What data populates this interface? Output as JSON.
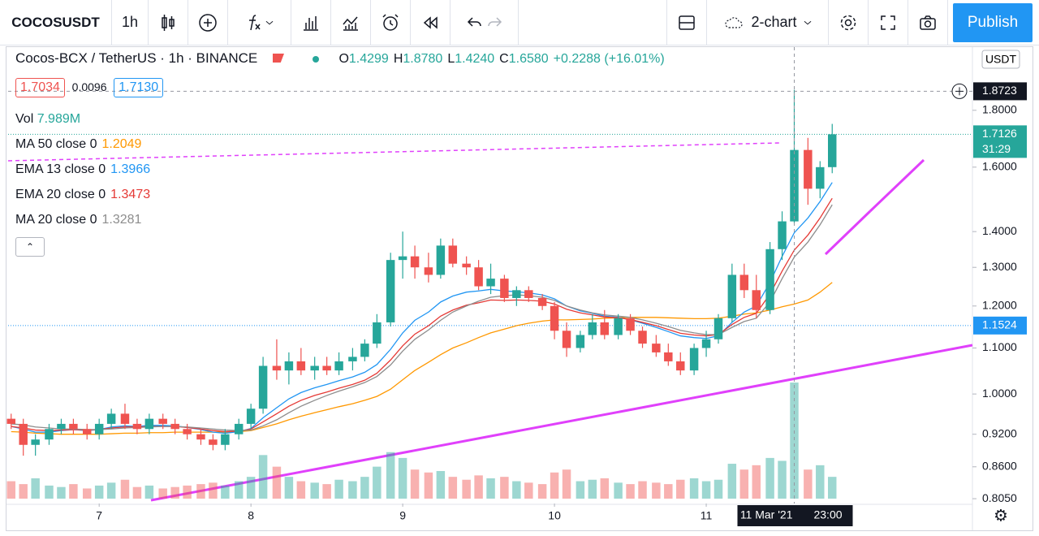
{
  "toolbar": {
    "symbol": "COCOSUSDT",
    "interval": "1h",
    "layout": "2-chart",
    "publish": "Publish"
  },
  "legend": {
    "title": "Cocos-BCX / TetherUS · 1h · BINANCE",
    "ohlc": [
      {
        "key": "O",
        "value": "1.4299"
      },
      {
        "key": "H",
        "value": "1.8780"
      },
      {
        "key": "L",
        "value": "1.4240"
      },
      {
        "key": "C",
        "value": "1.6580"
      }
    ],
    "change": "+0.2288 (+16.01%)",
    "bid": "1.7034",
    "spread": "0.0096",
    "ask": "1.7130",
    "volume_name": "Vol",
    "volume_value": "7.989M"
  },
  "chart_data": {
    "type": "candlestick",
    "currency": "USDT",
    "log_scale": true,
    "up_color": "#26a69a",
    "down_color": "#ef5350",
    "xlim": [
      6.4,
      12.754
    ],
    "xticks": [
      7,
      8,
      9,
      10,
      11
    ],
    "ylim": [
      0.797,
      2.038
    ],
    "yticks": [
      {
        "value": 0.805,
        "label": "0.8050"
      },
      {
        "value": 0.86,
        "label": "0.8600"
      },
      {
        "value": 0.92,
        "label": "0.9200"
      },
      {
        "value": 1.0,
        "label": "1.0000"
      },
      {
        "value": 1.1,
        "label": "1.1000"
      },
      {
        "value": 1.2,
        "label": "1.2000"
      },
      {
        "value": 1.3,
        "label": "1.3000"
      },
      {
        "value": 1.4,
        "label": "1.4000"
      },
      {
        "value": 1.6,
        "label": "1.6000"
      },
      {
        "value": 1.8,
        "label": "1.8000"
      }
    ],
    "vol_ylim": [
      0,
      9500000
    ],
    "x": [
      6.42,
      6.5,
      6.58,
      6.67,
      6.75,
      6.83,
      6.92,
      7.0,
      7.08,
      7.17,
      7.25,
      7.33,
      7.42,
      7.5,
      7.58,
      7.67,
      7.75,
      7.83,
      7.92,
      8.0,
      8.08,
      8.17,
      8.25,
      8.33,
      8.42,
      8.5,
      8.58,
      8.67,
      8.75,
      8.83,
      8.92,
      9.0,
      9.08,
      9.17,
      9.25,
      9.33,
      9.42,
      9.5,
      9.58,
      9.67,
      9.75,
      9.83,
      9.92,
      10.0,
      10.08,
      10.17,
      10.25,
      10.33,
      10.42,
      10.5,
      10.58,
      10.67,
      10.75,
      10.83,
      10.92,
      11.0,
      11.08,
      11.17,
      11.25,
      11.33,
      11.42,
      11.5,
      11.58,
      11.67,
      11.75,
      11.83
    ],
    "open": [
      0.95,
      0.94,
      0.9,
      0.91,
      0.93,
      0.94,
      0.93,
      0.92,
      0.94,
      0.96,
      0.94,
      0.93,
      0.95,
      0.94,
      0.93,
      0.92,
      0.91,
      0.9,
      0.92,
      0.94,
      0.97,
      1.06,
      1.05,
      1.07,
      1.05,
      1.06,
      1.05,
      1.07,
      1.08,
      1.11,
      1.16,
      1.32,
      1.33,
      1.3,
      1.28,
      1.36,
      1.31,
      1.3,
      1.25,
      1.27,
      1.22,
      1.24,
      1.22,
      1.2,
      1.14,
      1.1,
      1.13,
      1.16,
      1.13,
      1.17,
      1.14,
      1.11,
      1.09,
      1.07,
      1.05,
      1.1,
      1.12,
      1.17,
      1.28,
      1.24,
      1.19,
      1.35,
      1.4299,
      1.658,
      1.53,
      1.6
    ],
    "high": [
      0.96,
      0.95,
      0.92,
      0.94,
      0.95,
      0.95,
      0.94,
      0.95,
      0.97,
      0.98,
      0.95,
      0.96,
      0.96,
      0.95,
      0.94,
      0.93,
      0.92,
      0.93,
      0.95,
      0.98,
      1.08,
      1.12,
      1.09,
      1.1,
      1.08,
      1.08,
      1.09,
      1.1,
      1.12,
      1.18,
      1.34,
      1.4,
      1.36,
      1.34,
      1.38,
      1.38,
      1.33,
      1.32,
      1.31,
      1.28,
      1.25,
      1.25,
      1.23,
      1.21,
      1.16,
      1.14,
      1.18,
      1.19,
      1.18,
      1.18,
      1.15,
      1.13,
      1.11,
      1.09,
      1.11,
      1.14,
      1.18,
      1.31,
      1.31,
      1.28,
      1.37,
      1.46,
      1.878,
      1.7,
      1.62,
      1.75
    ],
    "low": [
      0.93,
      0.88,
      0.88,
      0.9,
      0.92,
      0.92,
      0.91,
      0.91,
      0.93,
      0.93,
      0.92,
      0.92,
      0.93,
      0.92,
      0.91,
      0.9,
      0.89,
      0.89,
      0.91,
      0.93,
      0.96,
      1.03,
      1.02,
      1.04,
      1.03,
      1.04,
      1.04,
      1.05,
      1.07,
      1.1,
      1.15,
      1.27,
      1.27,
      1.26,
      1.27,
      1.3,
      1.28,
      1.24,
      1.23,
      1.21,
      1.2,
      1.21,
      1.19,
      1.12,
      1.08,
      1.09,
      1.12,
      1.12,
      1.12,
      1.13,
      1.1,
      1.08,
      1.06,
      1.04,
      1.04,
      1.08,
      1.11,
      1.16,
      1.22,
      1.17,
      1.18,
      1.32,
      1.424,
      1.48,
      1.5,
      1.58
    ],
    "close": [
      0.94,
      0.9,
      0.91,
      0.93,
      0.94,
      0.93,
      0.92,
      0.94,
      0.96,
      0.94,
      0.93,
      0.95,
      0.94,
      0.93,
      0.92,
      0.91,
      0.9,
      0.92,
      0.94,
      0.97,
      1.06,
      1.05,
      1.07,
      1.05,
      1.06,
      1.05,
      1.07,
      1.08,
      1.11,
      1.16,
      1.32,
      1.33,
      1.3,
      1.28,
      1.36,
      1.31,
      1.3,
      1.25,
      1.27,
      1.22,
      1.24,
      1.22,
      1.2,
      1.14,
      1.1,
      1.13,
      1.16,
      1.13,
      1.17,
      1.14,
      1.11,
      1.09,
      1.07,
      1.05,
      1.1,
      1.12,
      1.17,
      1.28,
      1.24,
      1.19,
      1.35,
      1.43,
      1.658,
      1.53,
      1.6,
      1.7126
    ],
    "volume": [
      1200000,
      1000000,
      1400000,
      900000,
      800000,
      1000000,
      700000,
      900000,
      1100000,
      1300000,
      800000,
      900000,
      700000,
      800000,
      900000,
      1000000,
      1100000,
      900000,
      1200000,
      1500000,
      3000000,
      2200000,
      1500000,
      1200000,
      1100000,
      1000000,
      1300000,
      1200000,
      1500000,
      2200000,
      3200000,
      2800000,
      2000000,
      1800000,
      1900000,
      1500000,
      1300000,
      1600000,
      1400000,
      1500000,
      1200000,
      1100000,
      1000000,
      1800000,
      2000000,
      1200000,
      1300000,
      1400000,
      1100000,
      1000000,
      1200000,
      1100000,
      1000000,
      1300000,
      1400000,
      1200000,
      1300000,
      2400000,
      2000000,
      2300000,
      2800000,
      2600000,
      7989000,
      2000000,
      2300000,
      1500000
    ],
    "series": [
      {
        "name": "MA 50 close 0",
        "color": "#ff9800",
        "values": [
          0.925,
          0.924,
          0.922,
          0.921,
          0.92,
          0.92,
          0.92,
          0.92,
          0.921,
          0.922,
          0.922,
          0.923,
          0.923,
          0.924,
          0.924,
          0.924,
          0.924,
          0.924,
          0.925,
          0.927,
          0.933,
          0.94,
          0.948,
          0.955,
          0.962,
          0.968,
          0.974,
          0.98,
          0.987,
          0.995,
          1.01,
          1.03,
          1.05,
          1.068,
          1.085,
          1.1,
          1.112,
          1.124,
          1.135,
          1.144,
          1.152,
          1.158,
          1.163,
          1.166,
          1.166,
          1.167,
          1.168,
          1.17,
          1.171,
          1.172,
          1.172,
          1.172,
          1.171,
          1.17,
          1.169,
          1.169,
          1.17,
          1.175,
          1.18,
          1.183,
          1.19,
          1.198,
          1.2049,
          1.215,
          1.235,
          1.26
        ]
      },
      {
        "name": "EMA 13 close 0",
        "color": "#2196f3",
        "values": [
          0.935,
          0.93,
          0.924,
          0.924,
          0.927,
          0.929,
          0.927,
          0.929,
          0.934,
          0.936,
          0.935,
          0.937,
          0.937,
          0.936,
          0.933,
          0.929,
          0.924,
          0.922,
          0.925,
          0.931,
          0.952,
          0.972,
          0.99,
          1.003,
          1.013,
          1.02,
          1.028,
          1.036,
          1.046,
          1.063,
          1.097,
          1.135,
          1.165,
          1.185,
          1.21,
          1.225,
          1.235,
          1.238,
          1.242,
          1.238,
          1.236,
          1.233,
          1.228,
          1.218,
          1.2,
          1.188,
          1.182,
          1.175,
          1.172,
          1.166,
          1.158,
          1.148,
          1.138,
          1.128,
          1.124,
          1.122,
          1.128,
          1.16,
          1.185,
          1.2,
          1.26,
          1.33,
          1.3966,
          1.44,
          1.49,
          1.55
        ]
      },
      {
        "name": "EMA 20 close 0",
        "color": "#e53935",
        "values": [
          0.935,
          0.932,
          0.928,
          0.927,
          0.928,
          0.929,
          0.928,
          0.929,
          0.932,
          0.934,
          0.934,
          0.935,
          0.935,
          0.935,
          0.933,
          0.93,
          0.927,
          0.925,
          0.926,
          0.93,
          0.944,
          0.96,
          0.975,
          0.987,
          0.997,
          1.004,
          1.012,
          1.02,
          1.029,
          1.044,
          1.073,
          1.105,
          1.132,
          1.152,
          1.175,
          1.19,
          1.202,
          1.208,
          1.215,
          1.214,
          1.215,
          1.214,
          1.212,
          1.205,
          1.192,
          1.183,
          1.178,
          1.173,
          1.171,
          1.167,
          1.16,
          1.152,
          1.143,
          1.134,
          1.13,
          1.128,
          1.131,
          1.155,
          1.172,
          1.182,
          1.23,
          1.29,
          1.3473,
          1.39,
          1.44,
          1.5
        ]
      },
      {
        "name": "MA 20 close 0",
        "color": "#8d8d8d",
        "values": [
          0.94,
          0.938,
          0.934,
          0.932,
          0.93,
          0.93,
          0.929,
          0.929,
          0.93,
          0.932,
          0.933,
          0.934,
          0.935,
          0.935,
          0.934,
          0.932,
          0.93,
          0.928,
          0.927,
          0.928,
          0.936,
          0.948,
          0.962,
          0.975,
          0.987,
          0.997,
          1.006,
          1.015,
          1.024,
          1.037,
          1.062,
          1.093,
          1.12,
          1.142,
          1.165,
          1.185,
          1.2,
          1.212,
          1.222,
          1.226,
          1.228,
          1.226,
          1.222,
          1.214,
          1.2,
          1.19,
          1.183,
          1.178,
          1.175,
          1.172,
          1.166,
          1.158,
          1.15,
          1.141,
          1.135,
          1.131,
          1.131,
          1.148,
          1.162,
          1.17,
          1.21,
          1.27,
          1.3281,
          1.37,
          1.42,
          1.48
        ]
      }
    ],
    "crosshair": {
      "index": 62,
      "price": 1.8723,
      "date_label": "11 Mar '21",
      "time_label": "23:00"
    },
    "last_price": 1.7126,
    "countdown": "31:29",
    "level": 1.1524
  }
}
